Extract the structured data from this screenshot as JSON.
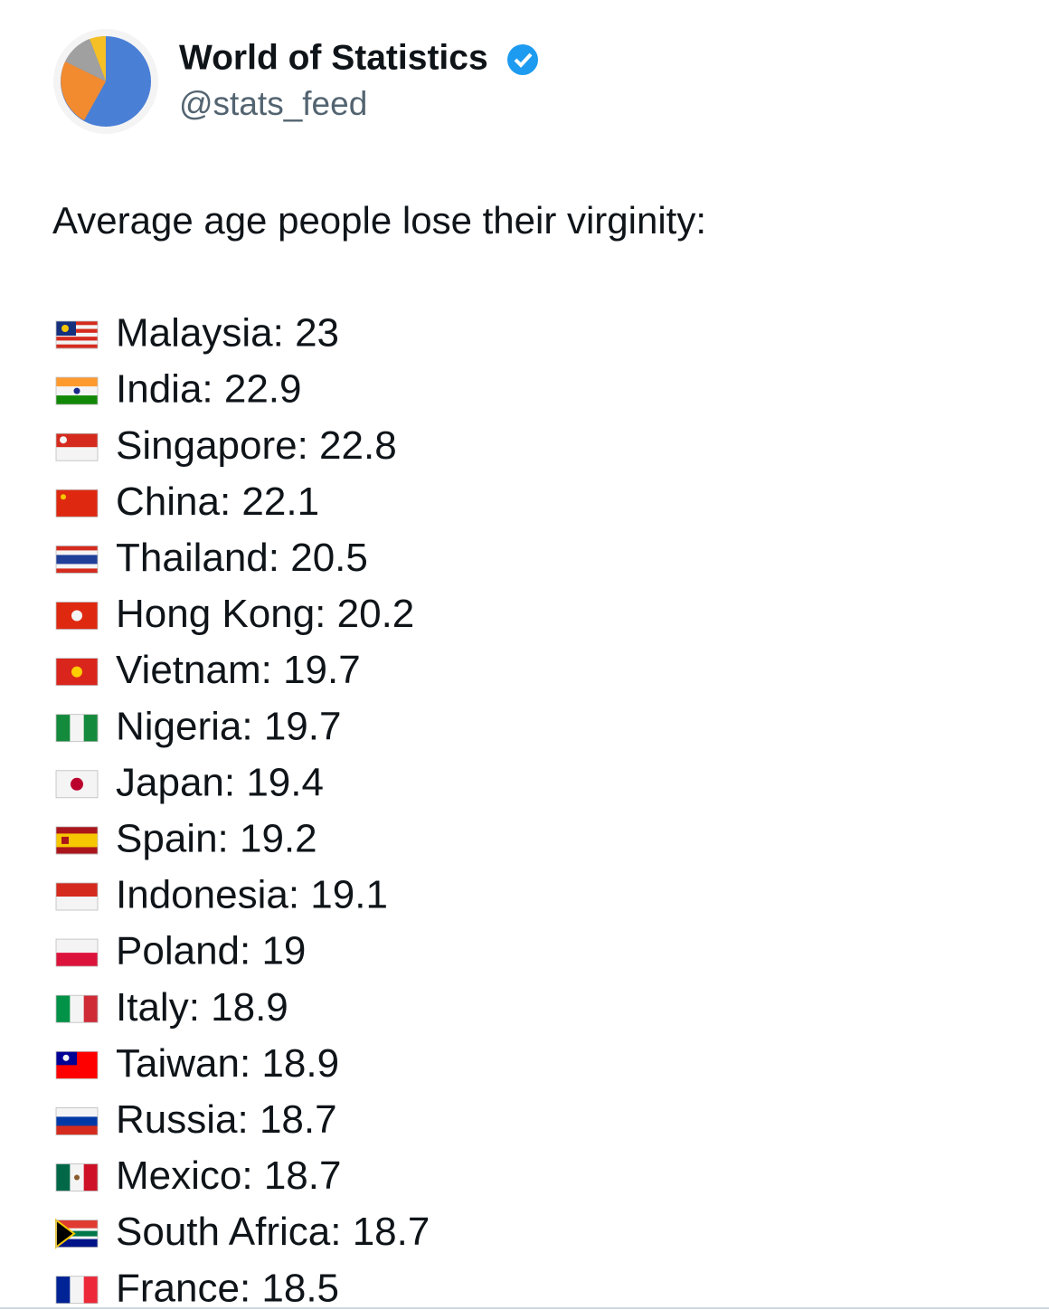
{
  "header": {
    "name": "World of Statistics",
    "handle": "@stats_feed"
  },
  "post": {
    "text": "Average age people lose their virginity:",
    "items": [
      "Malaysia: 23",
      "India: 22.9",
      "Singapore: 22.8",
      "China: 22.1",
      "Thailand: 20.5",
      "Hong Kong: 20.2",
      "Vietnam: 19.7",
      "Nigeria: 19.7",
      "Japan: 19.4",
      "Spain: 19.2",
      "Indonesia: 19.1",
      "Poland: 19",
      "Italy: 18.9",
      "Taiwan: 18.9",
      "Russia: 18.7",
      "Mexico: 18.7",
      "South Africa: 18.7",
      "France: 18.5"
    ]
  }
}
